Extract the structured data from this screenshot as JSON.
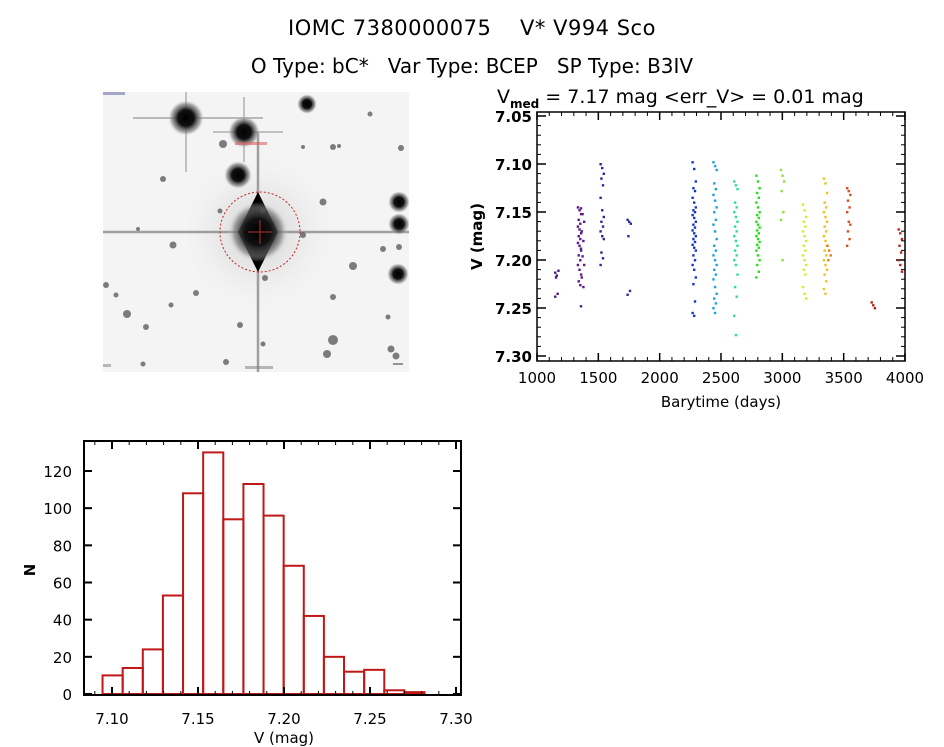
{
  "header": {
    "title_id": "IOMC 7380000075",
    "title_name": "V* V994 Sco",
    "otype_label": "O Type:",
    "otype": "bC*",
    "vartype_label": "Var Type:",
    "vartype": "BCEP",
    "sptype_label": "SP Type:",
    "sptype": "B3IV"
  },
  "sky_image": {
    "description": "inverted grayscale finding chart with target circled",
    "marker_color": "#d02020",
    "target_marker": "red dotted circle with crosshair"
  },
  "lightcurve_header": {
    "vmed_symbol": "V",
    "vmed_sub": "med",
    "vmed_text": " = 7.17 mag <err_V> = 0.01 mag",
    "vmed": 7.17,
    "err_v": 0.01
  },
  "chart_data": [
    {
      "type": "scatter",
      "title": "V_med = 7.17 mag <err_V> = 0.01 mag",
      "xlabel": "Barytime (days)",
      "ylabel": "V (mag)",
      "xlim": [
        1000,
        4000
      ],
      "ylim": [
        7.3,
        7.05
      ],
      "y_inverted": true,
      "xticks": [
        1000,
        1500,
        2000,
        2500,
        3000,
        3500,
        4000
      ],
      "xtick_labels": [
        "1000",
        "1500",
        "2000",
        "2500",
        "3000",
        "3500",
        "4000"
      ],
      "yticks": [
        7.05,
        7.1,
        7.15,
        7.2,
        7.25,
        7.3
      ],
      "ytick_labels": [
        "7.05",
        "7.10",
        "7.15",
        "7.20",
        "7.25",
        "7.30"
      ],
      "color_encodes": "time (rainbow, purple to red)",
      "clusters": [
        {
          "t": 1160,
          "v": [
            7.213,
            7.216,
            7.211,
            7.218,
            7.235,
            7.238
          ],
          "color": "#4b1a80"
        },
        {
          "t": 1345,
          "v": [
            7.145,
            7.148,
            7.152,
            7.158,
            7.162,
            7.165,
            7.168,
            7.172,
            7.175,
            7.178,
            7.182,
            7.185,
            7.19,
            7.195,
            7.2,
            7.205,
            7.21,
            7.215,
            7.222,
            7.226
          ],
          "color": "#5a1a8c"
        },
        {
          "t": 1370,
          "v": [
            7.146,
            7.152,
            7.16,
            7.17,
            7.18,
            7.188,
            7.196,
            7.205,
            7.218,
            7.228,
            7.248
          ],
          "color": "#5a1a8c"
        },
        {
          "t": 1530,
          "v": [
            7.1,
            7.104,
            7.11,
            7.115,
            7.122,
            7.135,
            7.148,
            7.155,
            7.16,
            7.165,
            7.17,
            7.175,
            7.178,
            7.192,
            7.198,
            7.205
          ],
          "color": "#3c1f99"
        },
        {
          "t": 1750,
          "v": [
            7.158,
            7.16,
            7.162,
            7.175,
            7.232,
            7.236
          ],
          "color": "#2b2aa0"
        },
        {
          "t": 2280,
          "v": [
            7.098,
            7.105,
            7.118,
            7.125,
            7.128,
            7.135,
            7.14,
            7.145,
            7.148,
            7.15,
            7.153,
            7.156,
            7.16,
            7.163,
            7.166,
            7.169,
            7.172,
            7.175,
            7.178,
            7.181,
            7.184,
            7.187,
            7.19,
            7.195,
            7.2,
            7.205,
            7.21,
            7.218,
            7.225,
            7.243,
            7.255,
            7.258
          ],
          "color": "#1437c8"
        },
        {
          "t": 2450,
          "v": [
            7.098,
            7.102,
            7.106,
            7.12,
            7.126,
            7.132,
            7.138,
            7.145,
            7.15,
            7.158,
            7.163,
            7.17,
            7.178,
            7.185,
            7.19,
            7.195,
            7.2,
            7.205,
            7.21,
            7.215,
            7.22,
            7.228,
            7.235,
            7.24,
            7.245,
            7.25,
            7.255
          ],
          "color": "#1ea0dc"
        },
        {
          "t": 2620,
          "v": [
            7.118,
            7.122,
            7.126,
            7.14,
            7.145,
            7.15,
            7.155,
            7.16,
            7.165,
            7.17,
            7.175,
            7.18,
            7.185,
            7.19,
            7.195,
            7.2,
            7.205,
            7.215,
            7.228,
            7.238,
            7.258,
            7.278
          ],
          "color": "#2fd9a0"
        },
        {
          "t": 2800,
          "v": [
            7.112,
            7.118,
            7.125,
            7.13,
            7.135,
            7.14,
            7.145,
            7.15,
            7.153,
            7.156,
            7.16,
            7.163,
            7.166,
            7.169,
            7.172,
            7.175,
            7.178,
            7.181,
            7.184,
            7.187,
            7.19,
            7.195,
            7.2,
            7.205,
            7.212,
            7.218
          ],
          "color": "#22e01a"
        },
        {
          "t": 3000,
          "v": [
            7.106,
            7.112,
            7.118,
            7.128,
            7.15,
            7.158,
            7.2
          ],
          "color": "#8ee03a"
        },
        {
          "t": 3180,
          "v": [
            7.142,
            7.148,
            7.155,
            7.16,
            7.165,
            7.17,
            7.175,
            7.18,
            7.185,
            7.19,
            7.195,
            7.2,
            7.205,
            7.21,
            7.215,
            7.228,
            7.235,
            7.24
          ],
          "color": "#d2ee22"
        },
        {
          "t": 3350,
          "v": [
            7.115,
            7.12,
            7.13,
            7.14,
            7.145,
            7.15,
            7.155,
            7.16,
            7.165,
            7.17,
            7.175,
            7.18,
            7.185,
            7.19,
            7.195,
            7.2,
            7.205,
            7.21,
            7.215,
            7.222,
            7.23,
            7.235
          ],
          "color": "#f0c020"
        },
        {
          "t": 3380,
          "v": [
            7.185,
            7.19,
            7.195,
            7.2
          ],
          "color": "#e0801c"
        },
        {
          "t": 3540,
          "v": [
            7.125,
            7.128,
            7.132,
            7.138,
            7.145,
            7.15,
            7.16,
            7.163,
            7.17,
            7.178,
            7.185
          ],
          "color": "#d8501a"
        },
        {
          "t": 3740,
          "v": [
            7.244,
            7.247,
            7.25
          ],
          "color": "#b0201a"
        },
        {
          "t": 3960,
          "v": [
            7.168,
            7.172,
            7.178,
            7.185,
            7.192,
            7.2,
            7.205,
            7.212
          ],
          "color": "#c02020"
        }
      ]
    },
    {
      "type": "bar",
      "subtype": "histogram",
      "xlabel": "V (mag)",
      "ylabel": "N",
      "xlim": [
        7.085,
        7.305
      ],
      "ylim": [
        0,
        135
      ],
      "xticks": [
        7.1,
        7.15,
        7.2,
        7.25,
        7.3
      ],
      "xtick_labels": [
        "7.10",
        "7.15",
        "7.20",
        "7.25",
        "7.30"
      ],
      "yticks": [
        0,
        20,
        40,
        60,
        80,
        100,
        120
      ],
      "ytick_labels": [
        "0",
        "20",
        "40",
        "60",
        "80",
        "100",
        "120"
      ],
      "bin_start": 7.0945,
      "bin_width": 0.0117,
      "values": [
        10,
        14,
        24,
        53,
        108,
        130,
        94,
        113,
        96,
        69,
        42,
        20,
        12,
        13,
        2,
        1
      ],
      "bar_color": "#c01818"
    }
  ]
}
